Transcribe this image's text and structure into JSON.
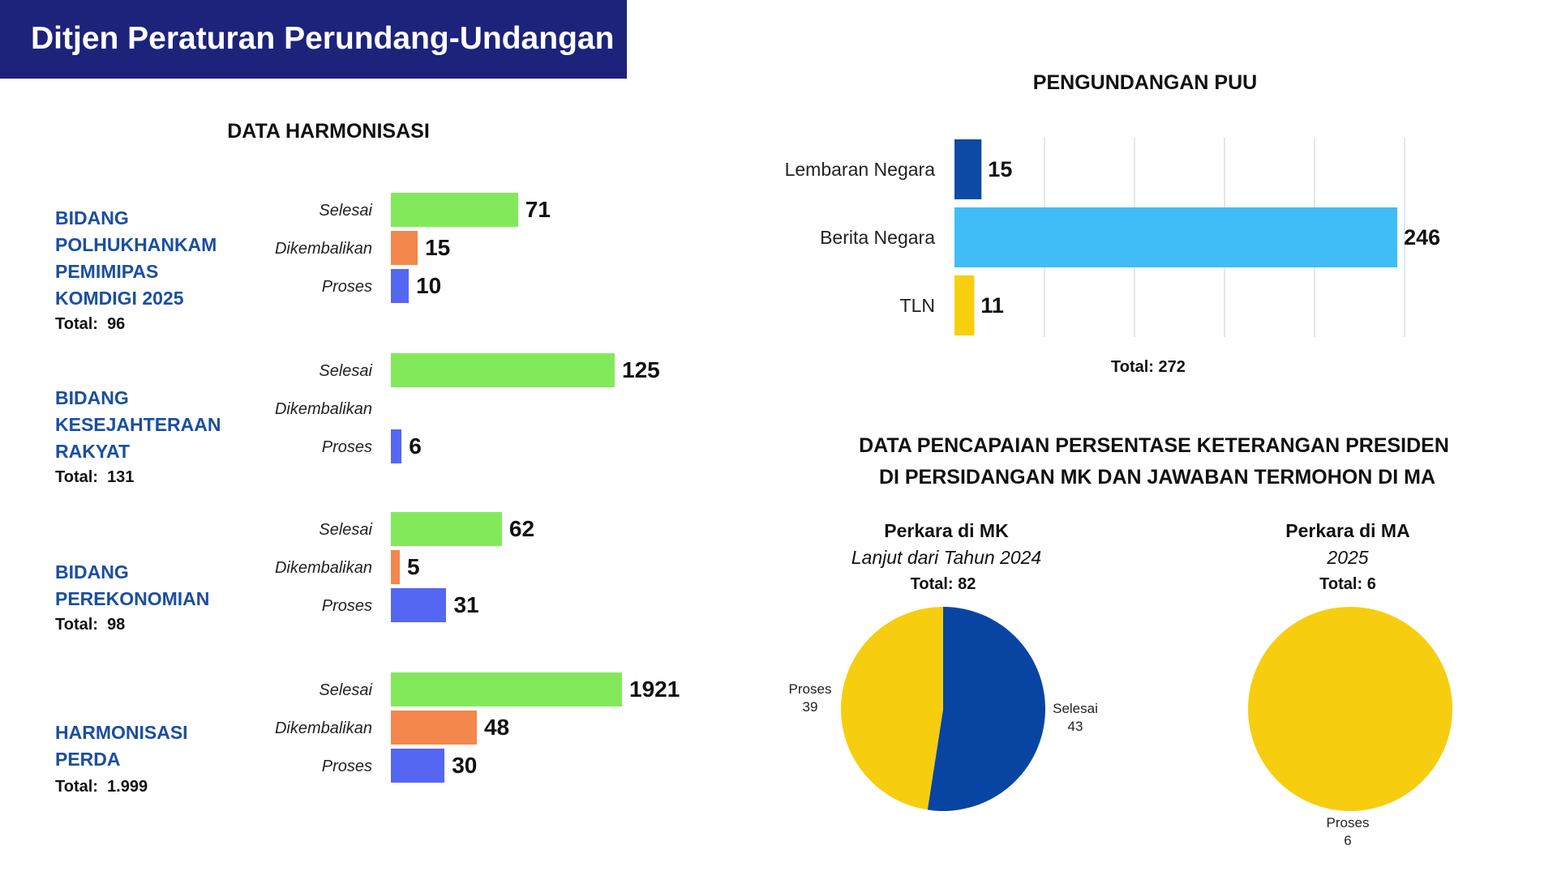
{
  "header": {
    "title": "Ditjen Peraturan Perundang-Undangan"
  },
  "harmonisasi": {
    "title": "DATA HARMONISASI",
    "categories": [
      "Selesai",
      "Dikembalikan",
      "Proses"
    ],
    "colors": [
      "#82ea5a",
      "#f4874b",
      "#5567f2"
    ],
    "xmax": 125,
    "groups": [
      {
        "name": "BIDANG\nPOLHUKHANKAM\nPEMIMIPAS\nKOMDIGI 2025",
        "total_label": "Total:",
        "total": "96",
        "values": [
          71,
          15,
          10
        ],
        "value_labels": [
          "71",
          "15",
          "10"
        ]
      },
      {
        "name": "BIDANG\nKESEJAHTERAAN\nRAKYAT",
        "total_label": "Total:",
        "total": "131",
        "values": [
          125,
          null,
          6
        ],
        "value_labels": [
          "125",
          "",
          "6"
        ]
      },
      {
        "name": "BIDANG\nPEREKONOMIAN",
        "total_label": "Total:",
        "total": "98",
        "values": [
          62,
          5,
          31
        ],
        "value_labels": [
          "62",
          "5",
          "31"
        ]
      },
      {
        "name": "HARMONISASI\nPERDA",
        "total_label": "Total:",
        "total": "1.999",
        "values": [
          1921,
          48,
          30
        ],
        "value_labels": [
          "1921",
          "48",
          "30"
        ]
      }
    ]
  },
  "pengundangan": {
    "title": "PENGUNDANGAN PUU",
    "total_label": "Total:",
    "total": "272"
  },
  "pencapaian": {
    "title_line1": "DATA PENCAPAIAN PERSENTASE KETERANGAN PRESIDEN",
    "title_line2": "DI PERSIDANGAN MK DAN JAWABAN TERMOHON DI MA",
    "mk": {
      "title": "Perkara di MK",
      "subtitle": "Lanjut dari Tahun 2024",
      "total_label": "Total:",
      "total": "82"
    },
    "ma": {
      "title": "Perkara di MA",
      "subtitle": "2025",
      "total_label": "Total:",
      "total": "6"
    }
  },
  "chart_data": [
    {
      "type": "bar",
      "orientation": "horizontal",
      "title": "DATA HARMONISASI",
      "categories": [
        "BIDANG POLHUKHANKAM PEMIMIPAS KOMDIGI 2025",
        "BIDANG KESEJAHTERAAN RAKYAT",
        "BIDANG PEREKONOMIAN",
        "HARMONISASI PERDA"
      ],
      "series": [
        {
          "name": "Selesai",
          "values": [
            71,
            125,
            62,
            1921
          ]
        },
        {
          "name": "Dikembalikan",
          "values": [
            15,
            null,
            5,
            48
          ]
        },
        {
          "name": "Proses",
          "values": [
            10,
            6,
            31,
            30
          ]
        }
      ]
    },
    {
      "type": "bar",
      "orientation": "horizontal",
      "title": "PENGUNDANGAN PUU",
      "categories": [
        "Lembaran Negara",
        "Berita Negara",
        "TLN"
      ],
      "values": [
        15,
        246,
        11
      ],
      "colors": [
        "#0d4aa6",
        "#40bdf7",
        "#f8cf0c"
      ],
      "xlim": [
        0,
        250
      ],
      "grid": true
    },
    {
      "type": "pie",
      "title": "Perkara di MK",
      "labels": [
        "Selesai",
        "Proses"
      ],
      "values": [
        43,
        39
      ],
      "colors": [
        "#0845a2",
        "#f7cd10"
      ]
    },
    {
      "type": "pie",
      "title": "Perkara di MA",
      "labels": [
        "Proses"
      ],
      "values": [
        6
      ],
      "colors": [
        "#f7cd10"
      ]
    }
  ]
}
